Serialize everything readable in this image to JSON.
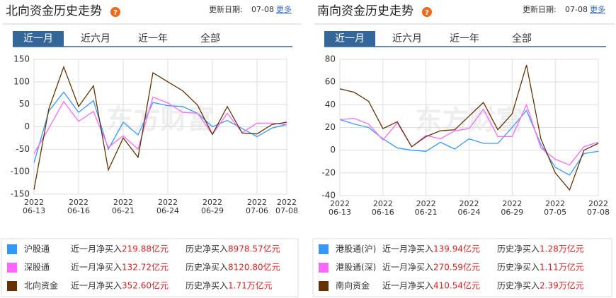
{
  "panels": [
    {
      "title": "北向资金历史走势",
      "update_label": "更新日期:",
      "update_date": "07-08",
      "more": "更多",
      "watermark": "东方财富",
      "tabs": [
        "近一月",
        "近六月",
        "近一年",
        "全部"
      ],
      "legend": [
        {
          "month_label": "近一月净买入",
          "month_value": "219.88亿元",
          "total_label": "历史净买入",
          "total_value": "8978.57亿元"
        },
        {
          "month_label": "近一月净买入",
          "month_value": "132.72亿元",
          "total_label": "历史净买入",
          "total_value": "8120.80亿元"
        },
        {
          "month_label": "近一月净买入",
          "month_value": "352.60亿元",
          "total_label": "历史净买入",
          "total_value": "1.71万亿元"
        }
      ]
    },
    {
      "title": "南向资金历史走势",
      "update_label": "更新日期:",
      "update_date": "07-08",
      "more": "更多",
      "watermark": "东方财富",
      "tabs": [
        "近一月",
        "近六月",
        "近一年",
        "全部"
      ],
      "legend": [
        {
          "month_label": "近一月净买入",
          "month_value": "139.94亿元",
          "total_label": "历史净买入",
          "total_value": "1.28万亿元"
        },
        {
          "month_label": "近一月净买入",
          "month_value": "270.59亿元",
          "total_label": "历史净买入",
          "total_value": "1.11万亿元"
        },
        {
          "month_label": "近一月净买入",
          "month_value": "410.54亿元",
          "total_label": "历史净买入",
          "total_value": "2.39万亿元"
        }
      ]
    }
  ],
  "chart_data": [
    {
      "type": "line",
      "categories": [
        "2022\n06-13",
        null,
        null,
        "2022\n06-16",
        null,
        null,
        "2022\n06-21",
        null,
        null,
        "2022\n06-24",
        null,
        null,
        "2022\n06-29",
        null,
        null,
        "2022\n07-06",
        null,
        "2022\n07-08"
      ],
      "ylim": [
        -150,
        150
      ],
      "yticks": [
        -150,
        -100,
        -50,
        0,
        50,
        100,
        150
      ],
      "grid": true,
      "series": [
        {
          "name": "沪股通",
          "color": "#3399ff",
          "values": [
            -80,
            35,
            77,
            32,
            58,
            -50,
            10,
            -18,
            54,
            47,
            45,
            30,
            0,
            14,
            -4,
            -22,
            -3,
            5
          ]
        },
        {
          "name": "深股通",
          "color": "#ff66ff",
          "values": [
            -60,
            -3,
            56,
            12,
            34,
            -46,
            -20,
            -50,
            66,
            53,
            32,
            30,
            -17,
            30,
            -13,
            8,
            8,
            5
          ]
        },
        {
          "name": "北向资金",
          "color": "#663300",
          "values": [
            -140,
            40,
            133,
            45,
            91,
            -96,
            -25,
            -68,
            120,
            100,
            80,
            48,
            -17,
            45,
            -14,
            -16,
            5,
            10
          ]
        }
      ]
    },
    {
      "type": "line",
      "categories": [
        "2022\n06-13",
        null,
        null,
        "2022\n06-16",
        null,
        null,
        "2022\n06-21",
        null,
        null,
        "2022\n06-24",
        null,
        null,
        "2022\n06-29",
        null,
        null,
        "2022\n07-05",
        null,
        null,
        "2022\n07-08"
      ],
      "ylim": [
        -40,
        80
      ],
      "yticks": [
        -40,
        -20,
        0,
        20,
        40,
        60,
        80
      ],
      "grid": true,
      "series": [
        {
          "name": "港股通(沪)",
          "color": "#3399ff",
          "values": [
            27,
            23,
            20,
            10,
            2,
            0,
            -1,
            7,
            1,
            10,
            6,
            6,
            20,
            35,
            5,
            -15,
            -22,
            -3,
            -1
          ]
        },
        {
          "name": "港股通(深)",
          "color": "#ff66ff",
          "values": [
            27,
            28,
            23,
            9,
            24,
            3,
            13,
            10,
            17,
            19,
            36,
            12,
            12,
            40,
            2,
            -8,
            -13,
            3,
            7
          ]
        },
        {
          "name": "南向资金",
          "color": "#663300",
          "values": [
            54,
            51,
            43,
            19,
            25,
            3,
            12,
            17,
            18,
            30,
            42,
            18,
            32,
            75,
            10,
            -20,
            -35,
            0,
            6
          ]
        }
      ]
    }
  ]
}
